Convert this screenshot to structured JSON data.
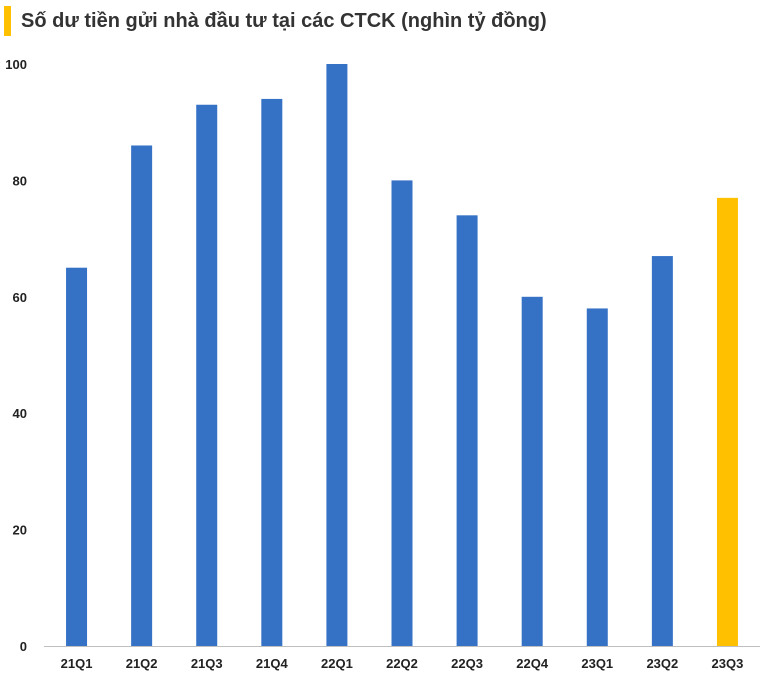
{
  "chart_data": {
    "type": "bar",
    "title": "Số dư tiền gửi nhà đầu tư tại các CTCK (nghìn tỷ đồng)",
    "categories": [
      "21Q1",
      "21Q2",
      "21Q3",
      "21Q4",
      "22Q1",
      "22Q2",
      "22Q3",
      "22Q4",
      "23Q1",
      "23Q2",
      "23Q3"
    ],
    "values": [
      65,
      86,
      93,
      94,
      100,
      80,
      74,
      60,
      58,
      67,
      77
    ],
    "ylim": [
      0,
      100
    ],
    "yticks": [
      0,
      20,
      40,
      60,
      80,
      100
    ],
    "grid": false,
    "legend": "none",
    "xlabel": "",
    "ylabel": "",
    "colors": {
      "bar": "#3572C6",
      "highlight": "#FFC000",
      "title_accent": "#FFC000",
      "axis": "#BFBFBF"
    },
    "highlight_category": "23Q3"
  }
}
